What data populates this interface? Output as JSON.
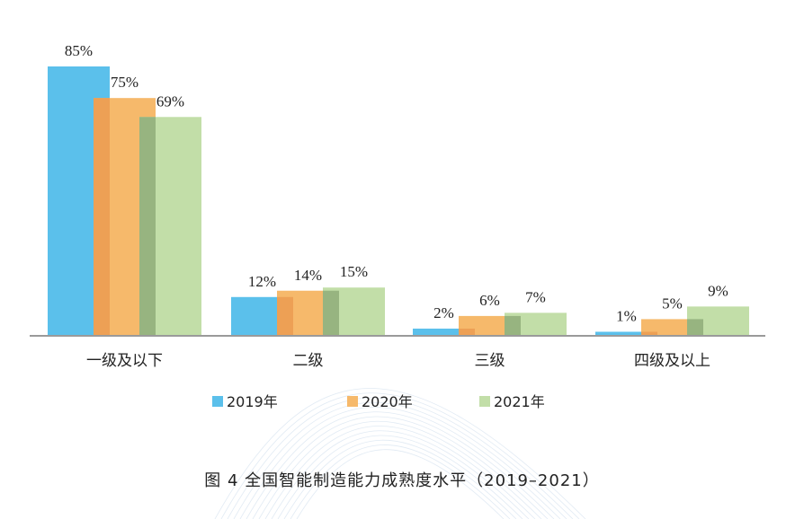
{
  "chart_data": {
    "type": "bar",
    "categories": [
      "一级及以下",
      "二级",
      "三级",
      "四级及以上"
    ],
    "series": [
      {
        "name": "2019年",
        "values": [
          85,
          12,
          2,
          1
        ],
        "color": "#5bc0eb"
      },
      {
        "name": "2020年",
        "values": [
          75,
          14,
          6,
          5
        ],
        "color": "#f6b96b"
      },
      {
        "name": "2021年",
        "values": [
          69,
          15,
          7,
          9
        ],
        "color": "#c2dea8"
      }
    ],
    "value_suffix": "%",
    "overlap_colors": [
      "#eda055",
      "#97b480"
    ],
    "axis_color": "#9a9a9a",
    "ylim": [
      0,
      85
    ],
    "grid": false,
    "legend_position": "bottom",
    "title": "图 4  全国智能制造能力成熟度水平（2019–2021）"
  }
}
